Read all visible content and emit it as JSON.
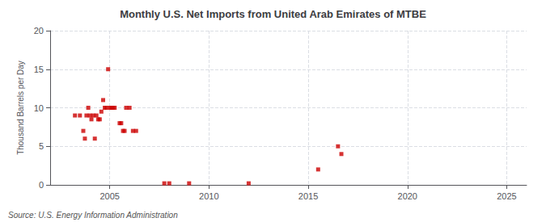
{
  "chart_data": {
    "type": "scatter",
    "title": "Monthly U.S. Net Imports from United Arab Emirates of MTBE",
    "ylabel": "Thousand Barrels per Day",
    "annotations": [
      "Source: U.S. Energy Information Administration"
    ],
    "x": [
      2003.25,
      2003.5,
      2003.67,
      2003.75,
      2003.83,
      2003.92,
      2004.0,
      2004.08,
      2004.17,
      2004.25,
      2004.33,
      2004.42,
      2004.5,
      2004.58,
      2004.67,
      2004.75,
      2004.83,
      2004.92,
      2005.0,
      2005.08,
      2005.17,
      2005.25,
      2005.5,
      2005.58,
      2005.67,
      2005.75,
      2005.83,
      2006.0,
      2006.17,
      2006.33,
      2007.75,
      2008.0,
      2009.0,
      2012.0,
      2015.5,
      2016.5,
      2016.67
    ],
    "values": [
      9.0,
      9.0,
      7.0,
      6.0,
      9.0,
      10.0,
      9.0,
      8.5,
      9.0,
      6.0,
      9.0,
      8.5,
      8.5,
      9.5,
      11.0,
      10.0,
      10.0,
      15.0,
      10.0,
      10.0,
      10.0,
      10.0,
      8.0,
      8.0,
      7.0,
      7.0,
      10.0,
      10.0,
      7.0,
      7.0,
      0.2,
      0.2,
      0.2,
      0.2,
      2.0,
      5.0,
      4.0
    ],
    "color": "#cc0000",
    "marker": "square",
    "xlim": [
      2002,
      2026
    ],
    "xticks": [
      2005,
      2010,
      2015,
      2020,
      2025
    ],
    "ylim": [
      0,
      20
    ],
    "yticks": [
      0,
      5,
      10,
      15,
      20
    ],
    "grid": true
  }
}
